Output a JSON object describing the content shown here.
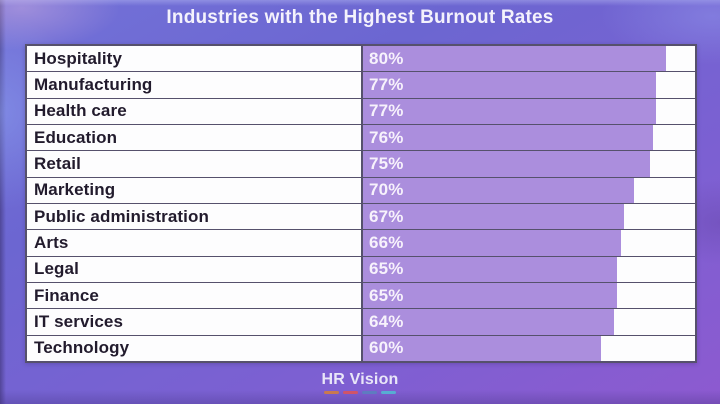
{
  "title": "Industries with the Highest Burnout Rates",
  "chart_data": {
    "type": "bar",
    "orientation": "horizontal",
    "title": "Industries with the Highest Burnout Rates",
    "categories": [
      "Hospitality",
      "Manufacturing",
      "Health care",
      "Education",
      "Retail",
      "Marketing",
      "Public administration",
      "Arts",
      "Legal",
      "Finance",
      "IT services",
      "Technology"
    ],
    "values": [
      80,
      77,
      77,
      76,
      75,
      70,
      67,
      66,
      65,
      65,
      64,
      60
    ],
    "value_suffix": "%",
    "xlim": [
      0,
      100
    ],
    "bar_color": "#ab8edd",
    "grid": "off",
    "legend": "none"
  },
  "footer": {
    "logo_text": "HR Vision",
    "logo_dash_colors": [
      "#c9794f",
      "#d05468",
      "#5e7cc0",
      "#57add2"
    ]
  },
  "colors": {
    "background_top": "#6c66d1",
    "background_bottom": "#8d5ad0",
    "bar_fill": "#ab8edd",
    "table_border": "#56516c",
    "cell_background": "#fdfdfe",
    "label_text": "#221b2d",
    "value_text": "#f7f2fc",
    "title_text": "#f4f2fc"
  }
}
